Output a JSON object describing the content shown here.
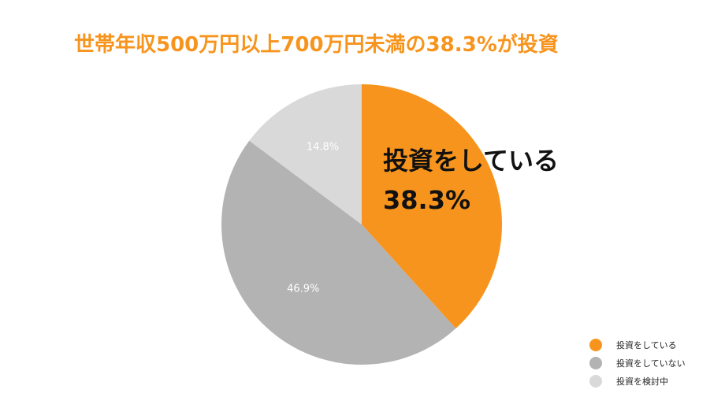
{
  "chart_data": {
    "type": "pie",
    "title": "世帯年収500万円以上700万円未満の38.3%が投資",
    "slices": [
      {
        "name": "投資をしている",
        "value": 38.3,
        "label": "",
        "color": "#f7941d"
      },
      {
        "name": "投資をしていない",
        "value": 46.9,
        "label": "46.9%",
        "color": "#b3b3b3"
      },
      {
        "name": "投資を検討中",
        "value": 14.8,
        "label": "14.8%",
        "color": "#d9d9d9"
      }
    ],
    "legend_position": "bottom-right",
    "callout": {
      "label": "投資をしている",
      "value": "38.3%"
    }
  }
}
